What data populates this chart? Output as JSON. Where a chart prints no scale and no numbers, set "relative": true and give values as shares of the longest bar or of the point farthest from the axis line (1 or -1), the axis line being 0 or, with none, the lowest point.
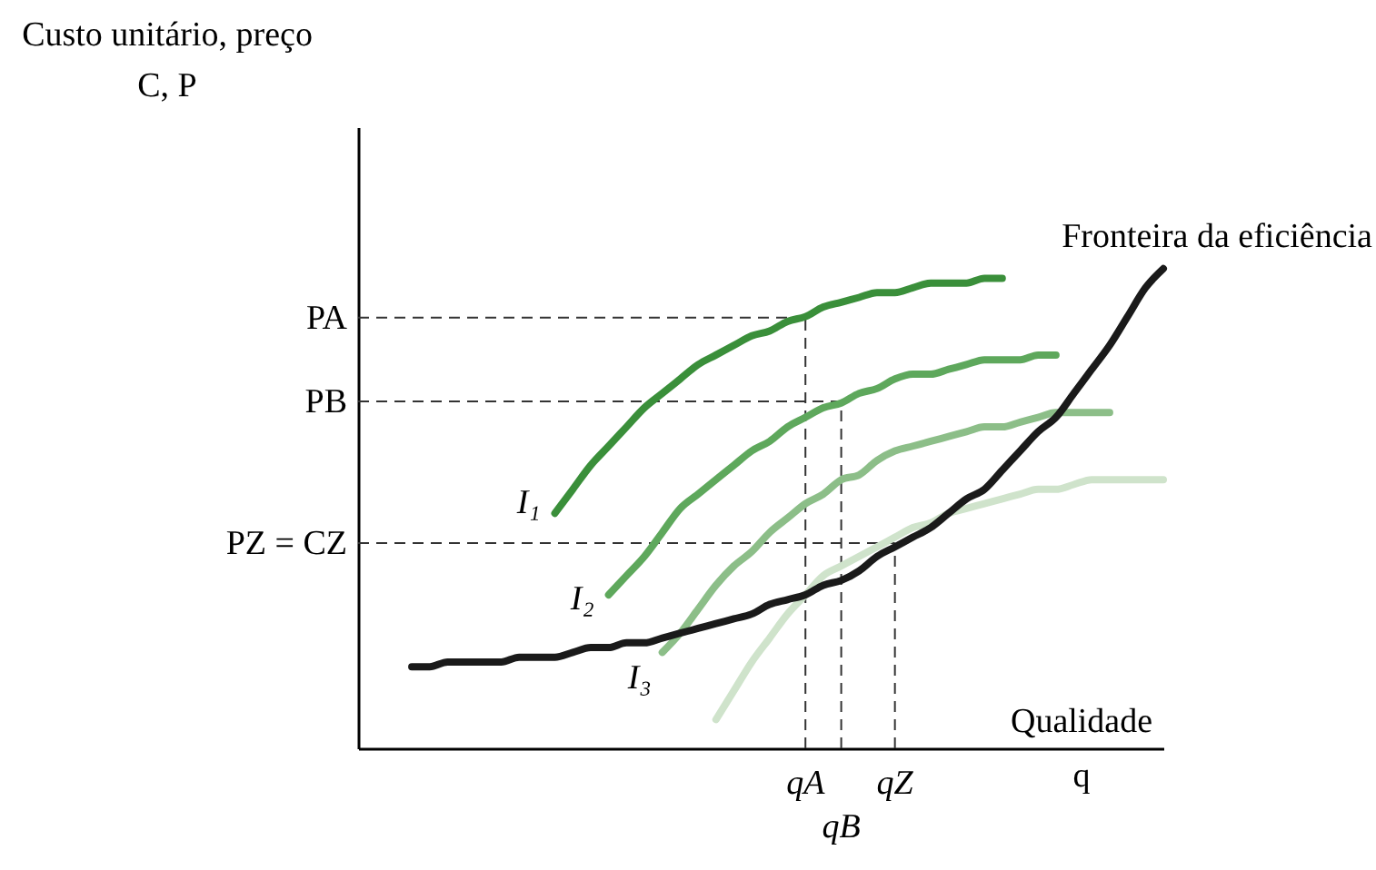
{
  "chart_data": {
    "type": "line",
    "relative": true,
    "xlabel": "Qualidade\nq",
    "annotations": [
      "Custo unitário, preço\nC, P"
    ],
    "line_style": "solid",
    "marker": "none",
    "grid": false,
    "categories": [
      null,
      null,
      null,
      null,
      null,
      null,
      null,
      null,
      null,
      null,
      null,
      null,
      null,
      null,
      null,
      null,
      null,
      null,
      null,
      null,
      null,
      null,
      null,
      null,
      null,
      "qA",
      null,
      "qB",
      null,
      null,
      "qZ",
      null,
      null,
      null,
      null,
      null,
      null,
      null,
      null,
      null,
      null,
      null,
      null,
      null,
      null,
      null
    ],
    "series": [
      {
        "name": "I₁",
        "color": "#3a8f3a",
        "values": [
          null,
          null,
          null,
          null,
          null,
          null,
          null,
          null,
          null,
          null,
          null,
          0.49,
          0.54,
          0.59,
          0.63,
          0.67,
          0.71,
          0.74,
          0.77,
          0.8,
          0.82,
          0.84,
          0.86,
          0.87,
          0.89,
          0.9,
          0.92,
          0.93,
          0.94,
          0.95,
          0.95,
          0.96,
          0.97,
          0.97,
          0.97,
          0.98,
          0.98,
          null,
          null,
          null,
          null,
          null,
          null,
          null,
          null,
          null
        ]
      },
      {
        "name": "I₂",
        "color": "#5ea85c",
        "values": [
          null,
          null,
          null,
          null,
          null,
          null,
          null,
          null,
          null,
          null,
          null,
          null,
          null,
          null,
          0.32,
          0.36,
          0.4,
          0.45,
          0.5,
          0.53,
          0.56,
          0.59,
          0.62,
          0.64,
          0.67,
          0.69,
          0.71,
          0.72,
          0.74,
          0.75,
          0.77,
          0.78,
          0.78,
          0.79,
          0.8,
          0.81,
          0.81,
          0.81,
          0.82,
          0.82,
          null,
          null,
          null,
          null,
          null,
          null
        ]
      },
      {
        "name": "I₃",
        "color": "#8cbe88",
        "values": [
          null,
          null,
          null,
          null,
          null,
          null,
          null,
          null,
          null,
          null,
          null,
          null,
          null,
          null,
          null,
          null,
          null,
          0.2,
          0.24,
          0.29,
          0.34,
          0.38,
          0.41,
          0.45,
          0.48,
          0.51,
          0.53,
          0.56,
          0.57,
          0.6,
          0.62,
          0.63,
          0.64,
          0.65,
          0.66,
          0.67,
          0.67,
          0.68,
          0.69,
          0.7,
          0.7,
          0.7,
          0.7,
          null,
          null,
          null
        ]
      },
      {
        "color": "#cfe3cb",
        "values": [
          null,
          null,
          null,
          null,
          null,
          null,
          null,
          null,
          null,
          null,
          null,
          null,
          null,
          null,
          null,
          null,
          null,
          null,
          null,
          null,
          0.06,
          0.12,
          0.18,
          0.23,
          0.28,
          0.32,
          0.36,
          0.38,
          0.4,
          0.42,
          0.44,
          0.46,
          0.47,
          0.49,
          0.5,
          0.51,
          0.52,
          0.53,
          0.54,
          0.54,
          0.55,
          0.56,
          0.56,
          0.56,
          0.56,
          0.56
        ]
      },
      {
        "name": "Fronteira da eficiência",
        "color": "#1a1a1a",
        "values": [
          null,
          null,
          null,
          0.17,
          0.17,
          0.18,
          0.18,
          0.18,
          0.18,
          0.19,
          0.19,
          0.19,
          0.2,
          0.21,
          0.21,
          0.22,
          0.22,
          0.23,
          0.24,
          0.25,
          0.26,
          0.27,
          0.28,
          0.3,
          0.31,
          0.32,
          0.34,
          0.35,
          0.37,
          0.4,
          0.42,
          0.44,
          0.46,
          0.49,
          0.52,
          0.54,
          0.58,
          0.62,
          0.66,
          0.69,
          0.74,
          0.79,
          0.84,
          0.9,
          0.96,
          1.0
        ]
      }
    ],
    "ref_lines": [
      {
        "axis": "y",
        "value": 0.898,
        "label": "PA",
        "line_style": "dashed"
      },
      {
        "axis": "y",
        "value": 0.723,
        "label": "PB",
        "line_style": "dashed"
      },
      {
        "axis": "y",
        "value": 0.428,
        "label": "PZ = CZ",
        "line_style": "dashed"
      },
      {
        "axis": "x",
        "value": "qA",
        "line_style": "dashed"
      },
      {
        "axis": "x",
        "value": "qB",
        "line_style": "dashed"
      },
      {
        "axis": "x",
        "value": "qZ",
        "line_style": "dashed"
      }
    ]
  }
}
